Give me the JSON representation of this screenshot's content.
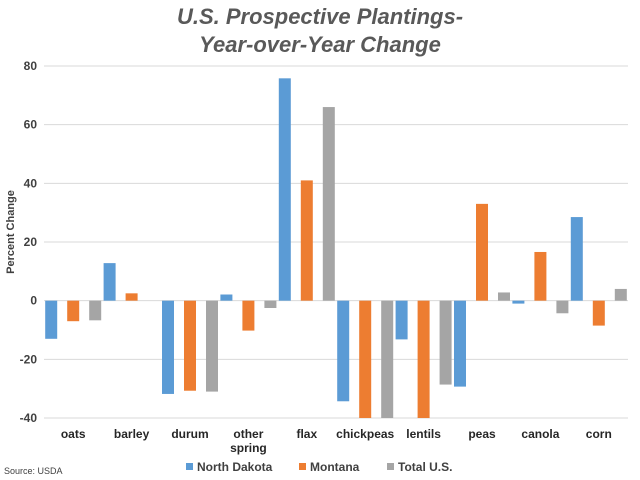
{
  "chart_data": {
    "type": "bar",
    "title_lines": [
      "U.S. Prospective Plantings-",
      "Year-over-Year Change"
    ],
    "ylabel": "Percent Change",
    "xlabel": "",
    "ylim": [
      -40,
      80
    ],
    "yticks": [
      -40,
      -20,
      0,
      20,
      40,
      60,
      80
    ],
    "grid": true,
    "legend_position": "bottom",
    "source": "Source: USDA",
    "categories": [
      [
        "oats"
      ],
      [
        "barley"
      ],
      [
        "durum"
      ],
      [
        "other",
        "spring"
      ],
      [
        "flax"
      ],
      [
        "chickpeas"
      ],
      [
        "lentils"
      ],
      [
        "peas"
      ],
      [
        "canola"
      ],
      [
        "corn"
      ]
    ],
    "series": [
      {
        "name": "North Dakota",
        "color": "#5b9bd5",
        "values": [
          -13,
          12.8,
          -31.8,
          2.1,
          75.8,
          -34.3,
          -13.2,
          -29.3,
          -1,
          28.5
        ]
      },
      {
        "name": "Montana",
        "color": "#ed7d31",
        "values": [
          -7,
          2.5,
          -30.7,
          -10.2,
          41,
          -40,
          -40,
          33,
          16.6,
          -8.5
        ]
      },
      {
        "name": "Total U.S.",
        "color": "#a5a5a5",
        "values": [
          -6.7,
          0,
          -31,
          -2.5,
          66,
          -40,
          -28.6,
          2.8,
          -4.3,
          4
        ]
      }
    ]
  }
}
